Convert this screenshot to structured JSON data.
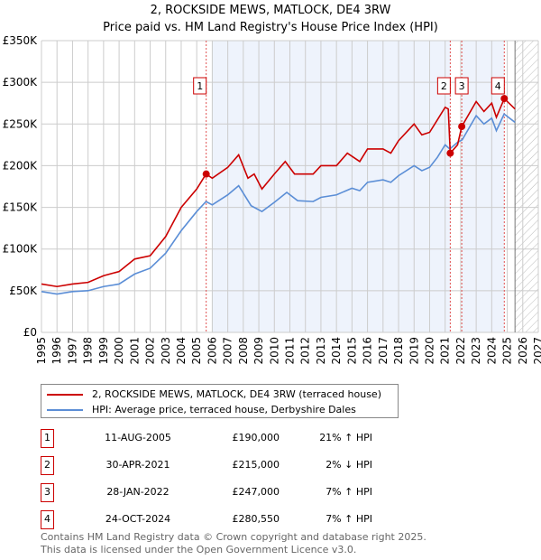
{
  "chart_data": {
    "type": "line",
    "title": "2, ROCKSIDE MEWS, MATLOCK, DE4 3RW",
    "subtitle": "Price paid vs. HM Land Registry's House Price Index (HPI)",
    "xlim": [
      1995,
      2027
    ],
    "ylim": [
      0,
      350000
    ],
    "y_ticks": [
      0,
      50000,
      100000,
      150000,
      200000,
      250000,
      300000,
      350000
    ],
    "y_tick_labels": [
      "£0",
      "£50K",
      "£100K",
      "£150K",
      "£200K",
      "£250K",
      "£300K",
      "£350K"
    ],
    "x_ticks": [
      "1995",
      "1996",
      "1997",
      "1998",
      "1999",
      "2000",
      "2001",
      "2002",
      "2003",
      "2004",
      "2005",
      "2006",
      "2007",
      "2008",
      "2009",
      "2010",
      "2011",
      "2012",
      "2013",
      "2014",
      "2015",
      "2016",
      "2017",
      "2018",
      "2019",
      "2020",
      "2021",
      "2022",
      "2023",
      "2024",
      "2025",
      "2026",
      "2027"
    ],
    "grid": true,
    "series": [
      {
        "name": "2, ROCKSIDE MEWS, MATLOCK, DE4 3RW (terraced house)",
        "color": "#cc0000",
        "x": [
          1995,
          1996,
          1997,
          1998,
          1999,
          2000,
          2001,
          2002,
          2003,
          2004,
          2005,
          2005.6,
          2006,
          2007,
          2007.7,
          2008.3,
          2008.7,
          2009.2,
          2010,
          2010.7,
          2011.3,
          2012.5,
          2013,
          2014,
          2014.7,
          2015.5,
          2016,
          2017,
          2017.5,
          2018,
          2019,
          2019.5,
          2020,
          2020.5,
          2021.0,
          2021.2,
          2021.33,
          2021.8,
          2022.07,
          2023,
          2023.5,
          2024,
          2024.3,
          2024.81,
          2025.5
        ],
        "y": [
          58,
          55,
          58,
          60,
          68,
          73,
          88,
          92,
          115,
          150,
          172,
          190,
          185,
          198,
          213,
          185,
          190,
          172,
          190,
          205,
          190,
          190,
          200,
          200,
          215,
          205,
          220,
          220,
          215,
          230,
          250,
          237,
          240,
          255,
          270,
          268,
          215,
          225,
          247,
          277,
          265,
          275,
          258,
          280.55,
          268
        ]
      },
      {
        "name": "HPI: Average price, terraced house, Derbyshire Dales",
        "color": "#5b8ed6",
        "x": [
          1995,
          1996,
          1997,
          1998,
          1999,
          2000,
          2001,
          2002,
          2003,
          2004,
          2005,
          2005.6,
          2006,
          2007,
          2007.7,
          2008.5,
          2009.2,
          2010,
          2010.8,
          2011.5,
          2012.5,
          2013,
          2014,
          2015,
          2015.5,
          2016,
          2017,
          2017.5,
          2018,
          2019,
          2019.5,
          2020,
          2020.5,
          2021.0,
          2021.3,
          2021.8,
          2022.1,
          2023,
          2023.5,
          2024,
          2024.3,
          2024.8,
          2025.5
        ],
        "y": [
          49,
          46,
          49,
          50,
          55,
          58,
          70,
          77,
          95,
          122,
          145,
          157,
          153,
          165,
          176,
          152,
          145,
          156,
          168,
          158,
          157,
          162,
          165,
          173,
          170,
          180,
          183,
          180,
          188,
          200,
          194,
          198,
          210,
          225,
          220,
          228,
          231,
          260,
          250,
          257,
          242,
          262,
          252
        ]
      }
    ],
    "sales": [
      {
        "label": "1",
        "x": 2005.61,
        "y": 190000
      },
      {
        "label": "2",
        "x": 2021.33,
        "y": 215000
      },
      {
        "label": "3",
        "x": 2022.07,
        "y": 247000
      },
      {
        "label": "4",
        "x": 2024.81,
        "y": 280550
      }
    ],
    "legend_placement": "below"
  },
  "legend": [
    "2, ROCKSIDE MEWS, MATLOCK, DE4 3RW (terraced house)",
    "HPI: Average price, terraced house, Derbyshire Dales"
  ],
  "transactions": [
    {
      "num": "1",
      "date": "11-AUG-2005",
      "price": "£190,000",
      "hpi": "21% ↑ HPI"
    },
    {
      "num": "2",
      "date": "30-APR-2021",
      "price": "£215,000",
      "hpi": "2% ↓ HPI"
    },
    {
      "num": "3",
      "date": "28-JAN-2022",
      "price": "£247,000",
      "hpi": "7% ↑ HPI"
    },
    {
      "num": "4",
      "date": "24-OCT-2024",
      "price": "£280,550",
      "hpi": "7% ↑ HPI"
    }
  ],
  "footer": [
    "Contains HM Land Registry data © Crown copyright and database right 2025.",
    "This data is licensed under the Open Government Licence v3.0."
  ]
}
